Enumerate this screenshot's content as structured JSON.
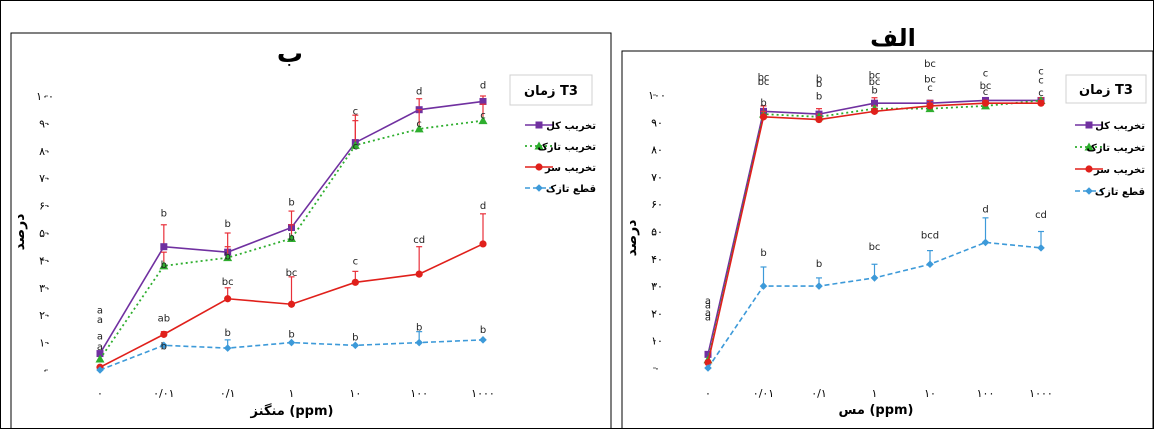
{
  "figure": {
    "colors": {
      "total": "#7030A0",
      "fresh": "#2EAE2E",
      "dry": "#E0201B",
      "cut": "#3D9AD9",
      "error": "#E8303A",
      "border": "#000000"
    }
  },
  "chart_data": [
    {
      "type": "line",
      "title": "ب",
      "xlabel": "منگنز (ppm)",
      "ylabel": "درصد",
      "categories": [
        "۰",
        "۰/۰۱",
        "۰/۱",
        "۱",
        "۱۰",
        "۱۰۰",
        "۱۰۰۰"
      ],
      "ylim": [
        0,
        100
      ],
      "yticks": [
        {
          "value": 0,
          "label": "۰"
        },
        {
          "value": 10,
          "label": "۱۰"
        },
        {
          "value": 20,
          "label": "۲۰"
        },
        {
          "value": 30,
          "label": "۳۰"
        },
        {
          "value": 40,
          "label": "۴۰"
        },
        {
          "value": 50,
          "label": "۵۰"
        },
        {
          "value": 60,
          "label": "۶۰"
        },
        {
          "value": 70,
          "label": "۷۰"
        },
        {
          "value": 80,
          "label": "۸۰"
        },
        {
          "value": 90,
          "label": "۹۰"
        },
        {
          "value": 100,
          "label": "۱۰۰"
        }
      ],
      "legend": {
        "title": "زمان T3",
        "position": "right",
        "entries": [
          "تخریب کل",
          "تخریب تازک",
          "تخریب سر",
          "قطع تازک"
        ]
      },
      "series": [
        {
          "name": "تخریب کل",
          "key": "total",
          "values": [
            6,
            45,
            43,
            52,
            83,
            95,
            98
          ],
          "errors": [
            0,
            8,
            7,
            6,
            10,
            4,
            2
          ],
          "labels": [
            {
              "i": 0,
              "text": "a",
              "dy": -40
            },
            {
              "i": 1,
              "text": "b",
              "dy": -30
            },
            {
              "i": 2,
              "text": "b",
              "dy": -25
            },
            {
              "i": 3,
              "text": "b",
              "dy": -22
            },
            {
              "i": 4,
              "text": "c",
              "dy": -28
            },
            {
              "i": 5,
              "text": "d",
              "dy": -15
            },
            {
              "i": 6,
              "text": "d",
              "dy": -13
            }
          ]
        },
        {
          "name": "تخریب تازک",
          "key": "fresh",
          "values": [
            4,
            38,
            41,
            48,
            82,
            88,
            91
          ],
          "errors": [
            0,
            5,
            4,
            5,
            9,
            7,
            6
          ],
          "labels": [
            {
              "i": 0,
              "text": "a",
              "dy": -36
            },
            {
              "i": 1,
              "text": "b",
              "dy": 2
            },
            {
              "i": 2,
              "text": "b",
              "dy": 2
            },
            {
              "i": 3,
              "text": "b",
              "dy": 2
            },
            {
              "i": 4,
              "text": "c",
              "dy": 4
            },
            {
              "i": 5,
              "text": "c",
              "dy": -2
            },
            {
              "i": 6,
              "text": "c",
              "dy": -2
            }
          ]
        },
        {
          "name": "تخریب سر",
          "key": "dry",
          "values": [
            1,
            13,
            26,
            24,
            32,
            35,
            46
          ],
          "errors": [
            0,
            1,
            4,
            10,
            4,
            10,
            11
          ],
          "labels": [
            {
              "i": 0,
              "text": "a",
              "dy": -28
            },
            {
              "i": 1,
              "text": "ab",
              "dy": -13
            },
            {
              "i": 2,
              "text": "bc",
              "dy": -14
            },
            {
              "i": 3,
              "text": "bc",
              "dy": -28
            },
            {
              "i": 4,
              "text": "c",
              "dy": -18
            },
            {
              "i": 5,
              "text": "cd",
              "dy": -31
            },
            {
              "i": 6,
              "text": "d",
              "dy": -35
            }
          ]
        },
        {
          "name": "قطع تازک",
          "key": "cut",
          "values": [
            0,
            9,
            8,
            10,
            9,
            10,
            11
          ],
          "errors": [
            0,
            0,
            3,
            0,
            0,
            4,
            0
          ],
          "labels": [
            {
              "i": 0,
              "text": "a",
              "dy": -20
            },
            {
              "i": 1,
              "text": "b",
              "dy": 4
            },
            {
              "i": 2,
              "text": "b",
              "dy": -12
            },
            {
              "i": 3,
              "text": "b",
              "dy": -5
            },
            {
              "i": 4,
              "text": "b",
              "dy": -5
            },
            {
              "i": 5,
              "text": "b",
              "dy": -12
            },
            {
              "i": 6,
              "text": "b",
              "dy": -7
            }
          ]
        }
      ]
    },
    {
      "type": "line",
      "title": "الف",
      "xlabel": "مس (ppm)",
      "ylabel": "درصد",
      "categories": [
        "۰",
        "۰/۰۱",
        "۰/۱",
        "۱",
        "۱۰",
        "۱۰۰",
        "۱۰۰۰"
      ],
      "ylim": [
        0,
        100
      ],
      "yticks": [
        {
          "value": 0,
          "label": "۰"
        },
        {
          "value": 10,
          "label": "۱۰"
        },
        {
          "value": 20,
          "label": "۲۰"
        },
        {
          "value": 30,
          "label": "۳۰"
        },
        {
          "value": 40,
          "label": "۴۰"
        },
        {
          "value": 50,
          "label": "۵۰"
        },
        {
          "value": 60,
          "label": "۶۰"
        },
        {
          "value": 70,
          "label": "۷۰"
        },
        {
          "value": 80,
          "label": "۸۰"
        },
        {
          "value": 90,
          "label": "۹۰"
        },
        {
          "value": 100,
          "label": "۱۰۰"
        }
      ],
      "legend": {
        "title": "زمان T3",
        "position": "right",
        "entries": [
          "تخریب کل",
          "تخریب تازک",
          "تخریب سر",
          "قطع تازک"
        ]
      },
      "series": [
        {
          "name": "تخریب کل",
          "key": "total",
          "values": [
            5,
            94,
            93,
            97,
            97,
            98,
            98
          ],
          "errors": [
            0,
            1,
            2,
            2,
            1,
            1,
            1
          ],
          "labels": [
            {
              "i": 0,
              "text": "a",
              "dy": -34
            },
            {
              "i": 1,
              "text": "bc",
              "dy": -31
            },
            {
              "i": 2,
              "text": "b",
              "dy": -32
            },
            {
              "i": 3,
              "text": "bc",
              "dy": -18
            },
            {
              "i": 4,
              "text": "bc",
              "dy": -36
            },
            {
              "i": 5,
              "text": "c",
              "dy": -24
            },
            {
              "i": 6,
              "text": "c",
              "dy": -26
            }
          ]
        },
        {
          "name": "تخریب تازک",
          "key": "fresh",
          "values": [
            3,
            93,
            92,
            95,
            95,
            96,
            98
          ],
          "errors": [
            0,
            3,
            1,
            1,
            2,
            2,
            1
          ],
          "labels": [
            {
              "i": 0,
              "text": "a",
              "dy": -44
            },
            {
              "i": 1,
              "text": "bc",
              "dy": -29
            },
            {
              "i": 2,
              "text": "b",
              "dy": -30
            },
            {
              "i": 3,
              "text": "bc",
              "dy": -30
            },
            {
              "i": 4,
              "text": "bc",
              "dy": -26
            },
            {
              "i": 5,
              "text": "bc",
              "dy": -17
            },
            {
              "i": 6,
              "text": "c",
              "dy": -17
            }
          ]
        },
        {
          "name": "تخریب سر",
          "key": "dry",
          "values": [
            2,
            92,
            91,
            94,
            96,
            97,
            97
          ],
          "errors": [
            0,
            2,
            1,
            1,
            2,
            1,
            1
          ],
          "labels": [
            {
              "i": 0,
              "text": "a",
              "dy": -54
            },
            {
              "i": 1,
              "text": "b",
              "dy": -11
            },
            {
              "i": 2,
              "text": "b",
              "dy": -20
            },
            {
              "i": 3,
              "text": "b",
              "dy": -18
            },
            {
              "i": 4,
              "text": "c",
              "dy": -15
            },
            {
              "i": 5,
              "text": "c",
              "dy": -8
            },
            {
              "i": 6,
              "text": "c",
              "dy": -7
            }
          ]
        },
        {
          "name": "قطع تازک",
          "key": "cut",
          "values": [
            0,
            30,
            30,
            33,
            38,
            46,
            44
          ],
          "errors": [
            0,
            7,
            3,
            5,
            5,
            9,
            6
          ],
          "labels": [
            {
              "i": 0,
              "text": "a",
              "dy": -64
            },
            {
              "i": 1,
              "text": "b",
              "dy": -30
            },
            {
              "i": 2,
              "text": "b",
              "dy": -19
            },
            {
              "i": 3,
              "text": "bc",
              "dy": -28
            },
            {
              "i": 4,
              "text": "bcd",
              "dy": -26
            },
            {
              "i": 5,
              "text": "d",
              "dy": -30
            },
            {
              "i": 6,
              "text": "cd",
              "dy": -30
            }
          ]
        }
      ]
    }
  ]
}
